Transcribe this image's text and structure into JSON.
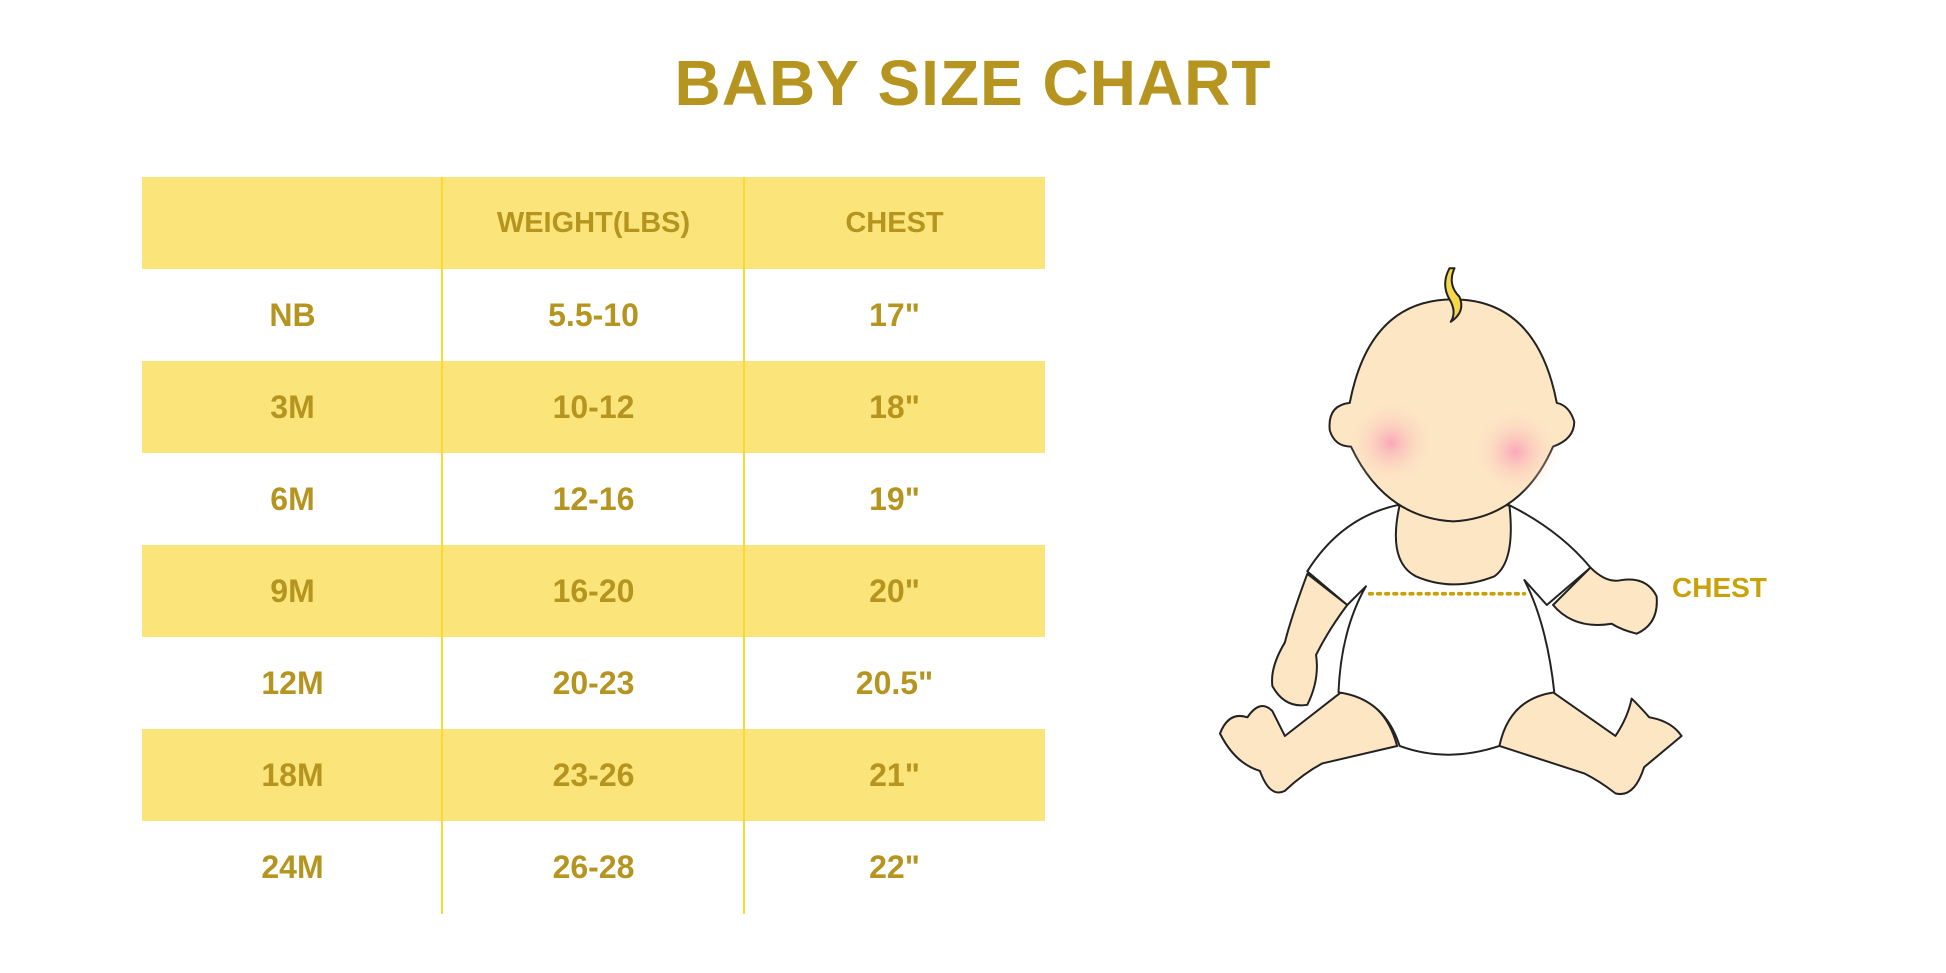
{
  "title": "BABY SIZE CHART",
  "table": {
    "headers": [
      "",
      "WEIGHT(LBS)",
      "CHEST"
    ],
    "rows": [
      [
        "NB",
        "5.5-10",
        "17\""
      ],
      [
        "3M",
        "10-12",
        "18\""
      ],
      [
        "6M",
        "12-16",
        "19\""
      ],
      [
        "9M",
        "16-20",
        "20\""
      ],
      [
        "12M",
        "20-23",
        "20.5\""
      ],
      [
        "18M",
        "23-26",
        "21\""
      ],
      [
        "24M",
        "26-28",
        "22\""
      ]
    ]
  },
  "illustration": {
    "chest_label": "CHEST"
  },
  "colors": {
    "text": "#b5951f",
    "band": "#fbe57b",
    "divider": "#fcd835"
  }
}
